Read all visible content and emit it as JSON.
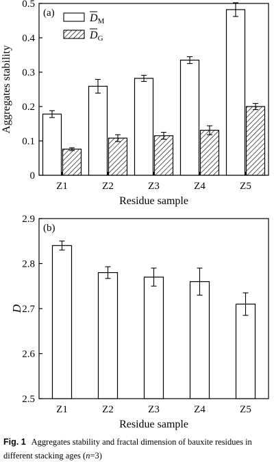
{
  "chart_data": [
    {
      "type": "bar",
      "panel_label": "(a)",
      "categories": [
        "Z1",
        "Z2",
        "Z3",
        "Z4",
        "Z5"
      ],
      "series": [
        {
          "name": "D̅M",
          "name_main": "D",
          "name_sub": "M",
          "style": "white-fill",
          "values": [
            0.178,
            0.259,
            0.282,
            0.335,
            0.482
          ],
          "errors": [
            0.01,
            0.02,
            0.009,
            0.01,
            0.02
          ]
        },
        {
          "name": "D̅G",
          "name_main": "D",
          "name_sub": "G",
          "style": "hatched",
          "values": [
            0.076,
            0.108,
            0.115,
            0.131,
            0.2
          ],
          "errors": [
            0.004,
            0.01,
            0.01,
            0.013,
            0.009
          ]
        }
      ],
      "xlabel": "Residue sample",
      "ylabel": "Aggregates stability",
      "ylim": [
        0,
        0.5
      ],
      "yticks": [
        "0",
        "0.1",
        "0.2",
        "0.3",
        "0.4",
        "0.5"
      ],
      "legend": "top-left",
      "grid": false
    },
    {
      "type": "bar",
      "panel_label": "(b)",
      "categories": [
        "Z1",
        "Z2",
        "Z3",
        "Z4",
        "Z5"
      ],
      "series": [
        {
          "name": "",
          "style": "white-fill",
          "values": [
            2.84,
            2.78,
            2.77,
            2.76,
            2.71
          ],
          "errors": [
            0.01,
            0.013,
            0.02,
            0.03,
            0.025
          ]
        }
      ],
      "xlabel": "Residue sample",
      "ylabel": "D",
      "ylim": [
        2.5,
        2.9
      ],
      "yticks": [
        "2.5",
        "2.6",
        "2.7",
        "2.8",
        "2.9"
      ],
      "legend": "none",
      "grid": false
    }
  ],
  "caption": {
    "label": "Fig. 1",
    "text_before": "Aggregates stability and fractal dimension of bauxite residues in different stacking ages (",
    "n_symbol": "n",
    "text_after": "=3)"
  }
}
